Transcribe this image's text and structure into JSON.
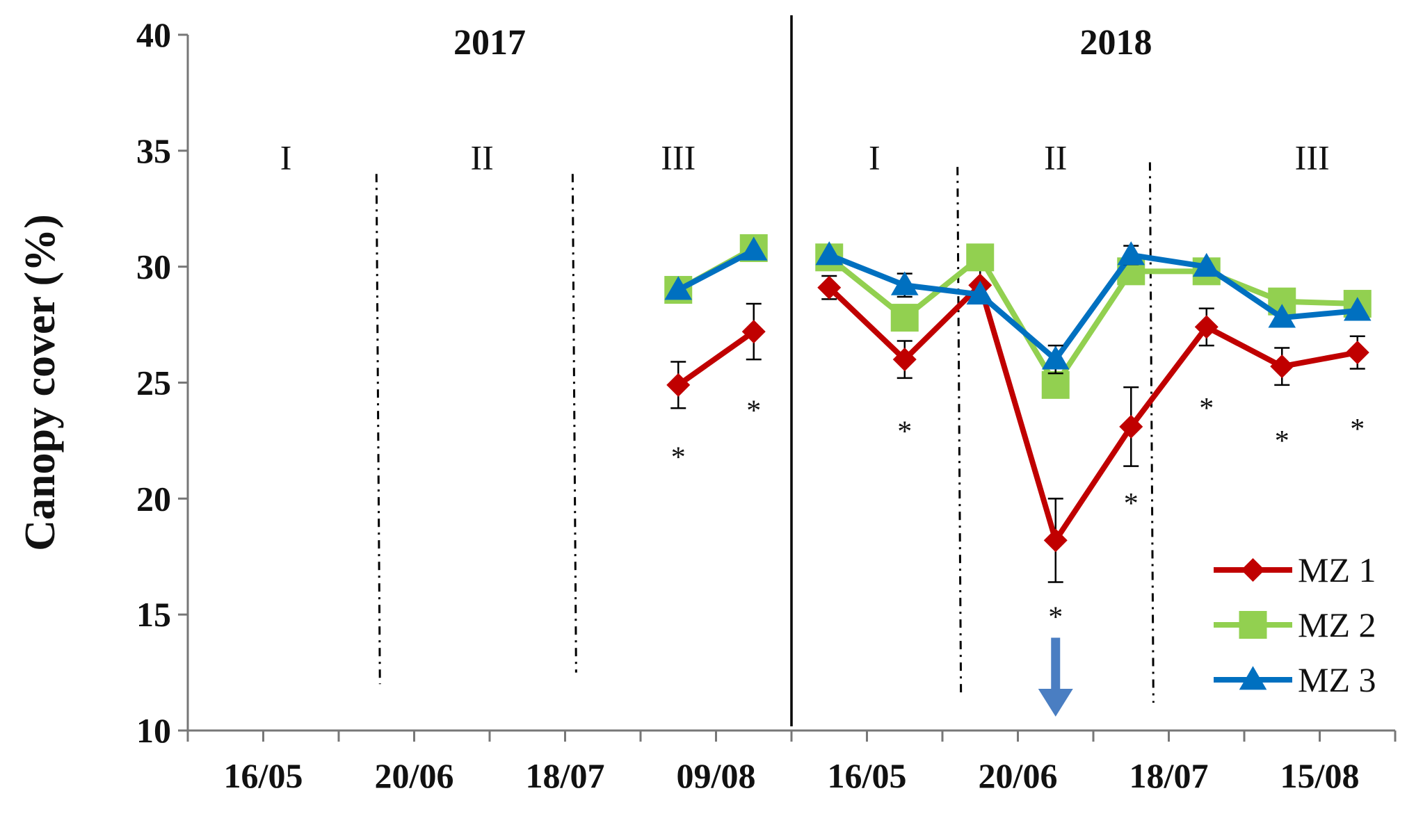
{
  "chart_data": {
    "type": "line",
    "ylabel": "Canopy cover (%)",
    "ylim": [
      10,
      40
    ],
    "yticks": [
      "10",
      "15",
      "20",
      "25",
      "30",
      "35",
      "40"
    ],
    "xticks": [
      {
        "slot": 1,
        "label": "16/05"
      },
      {
        "slot": 3,
        "label": "20/06"
      },
      {
        "slot": 5,
        "label": "18/07"
      },
      {
        "slot": 7,
        "label": "09/08"
      },
      {
        "slot": 9,
        "label": "16/05"
      },
      {
        "slot": 11,
        "label": "20/06"
      },
      {
        "slot": 13,
        "label": "18/07"
      },
      {
        "slot": 15,
        "label": "15/08"
      }
    ],
    "years": [
      {
        "label": "2017",
        "center_slot": 4
      },
      {
        "label": "2018",
        "center_slot": 12.3
      }
    ],
    "year_divider_slot": 8,
    "phase_boundaries": [
      {
        "slot": 2.5,
        "y_top": 34,
        "y_bottom": 12
      },
      {
        "slot": 5.1,
        "y_top": 34,
        "y_bottom": 12.5
      },
      {
        "slot": 10.2,
        "y_top": 34.3,
        "y_bottom": 11.5
      },
      {
        "slot": 12.75,
        "y_top": 34.5,
        "y_bottom": 11.2
      }
    ],
    "phase_labels": [
      {
        "label": "I",
        "slot": 1.3,
        "y": 34.2
      },
      {
        "label": "II",
        "slot": 3.9,
        "y": 34.2
      },
      {
        "label": "III",
        "slot": 6.5,
        "y": 34.2
      },
      {
        "label": "I",
        "slot": 9.1,
        "y": 34.2
      },
      {
        "label": "II",
        "slot": 11.5,
        "y": 34.2
      },
      {
        "label": "III",
        "slot": 14.9,
        "y": 34.2
      }
    ],
    "arrow": {
      "slot": 11.5,
      "y_top": 14,
      "y_bottom": 10.6,
      "color": "#4a7ec2"
    },
    "segments": [
      [
        6.5,
        7.5
      ],
      [
        8.5,
        9.5,
        10.5,
        11.5,
        12.5,
        13.5,
        14.5,
        15.5
      ]
    ],
    "series": [
      {
        "name": "MZ 1",
        "color": "#c00000",
        "marker": "diamond",
        "values": [
          [
            24.9,
            27.2
          ],
          [
            29.1,
            26.0,
            29.2,
            18.2,
            23.1,
            27.4,
            25.7,
            26.3
          ]
        ],
        "errors": [
          [
            1.0,
            1.2
          ],
          [
            0.5,
            0.8,
            0.7,
            1.8,
            1.7,
            0.8,
            0.8,
            0.7
          ]
        ]
      },
      {
        "name": "MZ 2",
        "color": "#92d050",
        "marker": "square",
        "values": [
          [
            29.0,
            30.8
          ],
          [
            30.4,
            27.8,
            30.4,
            24.9,
            29.8,
            29.8,
            28.5,
            28.4
          ]
        ],
        "errors": [
          [
            0,
            0
          ],
          [
            0,
            0,
            0,
            0,
            0,
            0,
            0,
            0
          ]
        ]
      },
      {
        "name": "MZ 3",
        "color": "#0070c0",
        "marker": "triangle",
        "values": [
          [
            29.0,
            30.7
          ],
          [
            30.5,
            29.2,
            28.8,
            26.0,
            30.5,
            30.0,
            27.8,
            28.1
          ]
        ],
        "errors": [
          [
            0,
            0
          ],
          [
            0,
            0.5,
            0,
            0.6,
            0.4,
            0,
            0,
            0
          ]
        ]
      }
    ],
    "significance": [
      {
        "slot": 6.5,
        "y": 21.8,
        "text": "*"
      },
      {
        "slot": 7.5,
        "y": 23.8,
        "text": "*"
      },
      {
        "slot": 9.5,
        "y": 22.9,
        "text": "*"
      },
      {
        "slot": 11.5,
        "y": 14.9,
        "text": "*"
      },
      {
        "slot": 12.5,
        "y": 19.8,
        "text": "*"
      },
      {
        "slot": 13.5,
        "y": 23.9,
        "text": "*"
      },
      {
        "slot": 14.5,
        "y": 22.5,
        "text": "*"
      },
      {
        "slot": 15.5,
        "y": 23.0,
        "text": "*"
      }
    ],
    "legend": {
      "position": "bottom-right"
    }
  }
}
